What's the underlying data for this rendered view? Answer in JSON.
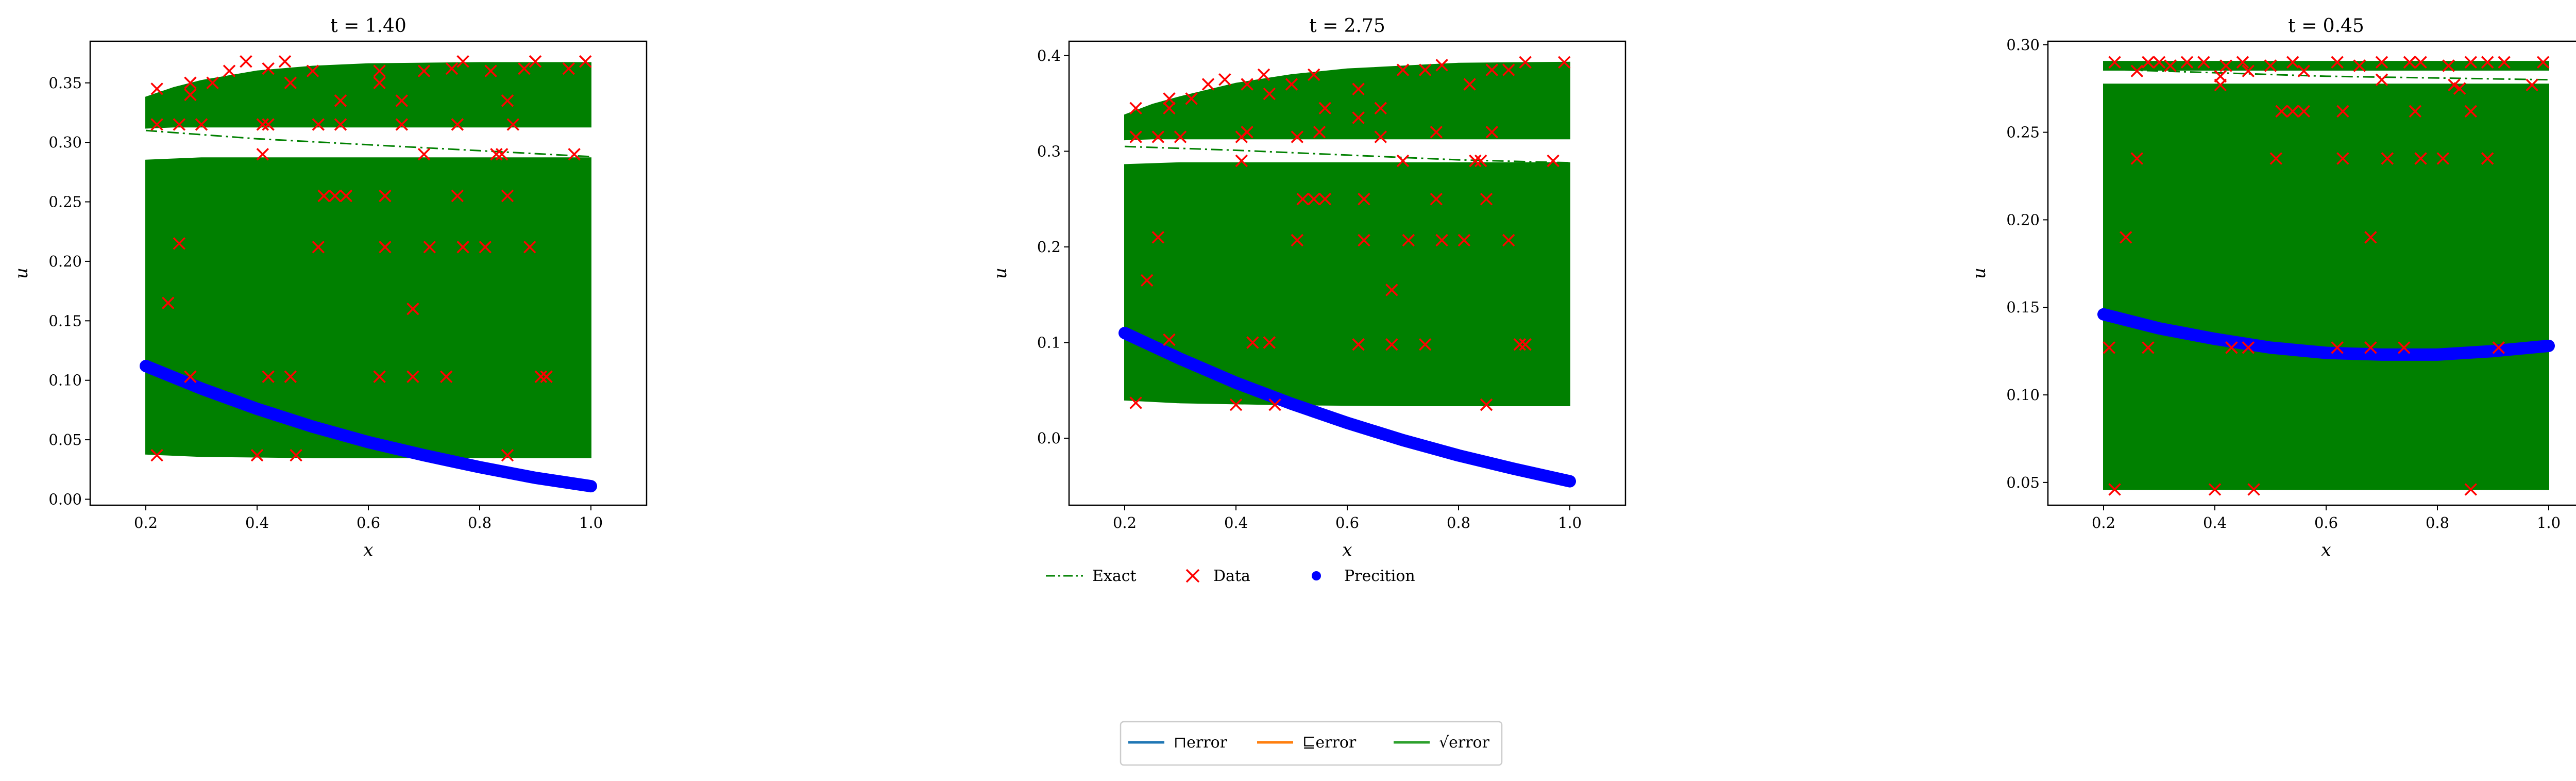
{
  "figure": {
    "legend_main": {
      "entries": [
        {
          "label": "Exact",
          "kind": "dashdot",
          "color": "#008000"
        },
        {
          "label": "Data",
          "kind": "x-marker",
          "color": "#ff0000"
        },
        {
          "label": "Precition",
          "kind": "dot",
          "color": "#0000ff"
        }
      ]
    },
    "legend_error": {
      "entries": [
        {
          "label": "⊓error",
          "color": "#1f77b4"
        },
        {
          "label": "⊑error",
          "color": "#ff7f0e"
        },
        {
          "label": "√error",
          "color": "#2ca02c"
        }
      ]
    }
  },
  "chart_data": [
    {
      "type": "scatter",
      "title": "t = 1.40",
      "xlabel": "x",
      "ylabel": "u",
      "xlim": [
        0.1,
        1.1
      ],
      "ylim": [
        -0.005,
        0.385
      ],
      "xticks": [
        0.2,
        0.4,
        0.6,
        0.8,
        1.0
      ],
      "yticks": [
        0.0,
        0.05,
        0.1,
        0.15,
        0.2,
        0.25,
        0.3,
        0.35
      ],
      "ytick_labels": [
        "0.00",
        "0.05",
        "0.10",
        "0.15",
        "0.20",
        "0.25",
        "0.30",
        "0.35"
      ],
      "bands": [
        {
          "x": [
            0.2,
            0.25,
            0.3,
            0.4,
            0.5,
            0.6,
            0.8,
            1.0
          ],
          "lower": [
            0.312,
            0.313,
            0.313,
            0.313,
            0.313,
            0.313,
            0.313,
            0.313
          ],
          "upper": [
            0.338,
            0.346,
            0.352,
            0.36,
            0.364,
            0.366,
            0.367,
            0.367
          ]
        },
        {
          "x": [
            0.2,
            0.3,
            0.5,
            0.7,
            1.0
          ],
          "lower": [
            0.038,
            0.036,
            0.035,
            0.035,
            0.035
          ],
          "upper": [
            0.285,
            0.287,
            0.287,
            0.287,
            0.287
          ]
        }
      ],
      "exact": {
        "x": [
          0.2,
          0.4,
          0.6,
          0.8,
          1.0
        ],
        "y": [
          0.31,
          0.303,
          0.298,
          0.293,
          0.288
        ]
      },
      "prediction": {
        "x": [
          0.2,
          0.3,
          0.4,
          0.5,
          0.6,
          0.7,
          0.8,
          0.9,
          1.0
        ],
        "y": [
          0.112,
          0.093,
          0.076,
          0.061,
          0.048,
          0.037,
          0.027,
          0.018,
          0.011
        ]
      },
      "data_points": [
        [
          0.22,
          0.345
        ],
        [
          0.26,
          0.315
        ],
        [
          0.28,
          0.34
        ],
        [
          0.28,
          0.35
        ],
        [
          0.32,
          0.35
        ],
        [
          0.35,
          0.36
        ],
        [
          0.38,
          0.368
        ],
        [
          0.42,
          0.362
        ],
        [
          0.45,
          0.368
        ],
        [
          0.46,
          0.35
        ],
        [
          0.5,
          0.36
        ],
        [
          0.55,
          0.335
        ],
        [
          0.62,
          0.36
        ],
        [
          0.66,
          0.335
        ],
        [
          0.7,
          0.36
        ],
        [
          0.75,
          0.362
        ],
        [
          0.77,
          0.368
        ],
        [
          0.82,
          0.36
        ],
        [
          0.85,
          0.335
        ],
        [
          0.88,
          0.362
        ],
        [
          0.9,
          0.368
        ],
        [
          0.96,
          0.362
        ],
        [
          0.99,
          0.368
        ],
        [
          0.22,
          0.315
        ],
        [
          0.3,
          0.315
        ],
        [
          0.41,
          0.315
        ],
        [
          0.42,
          0.315
        ],
        [
          0.51,
          0.315
        ],
        [
          0.55,
          0.315
        ],
        [
          0.62,
          0.35
        ],
        [
          0.66,
          0.315
        ],
        [
          0.76,
          0.315
        ],
        [
          0.86,
          0.315
        ],
        [
          0.41,
          0.29
        ],
        [
          0.7,
          0.29
        ],
        [
          0.83,
          0.29
        ],
        [
          0.84,
          0.29
        ],
        [
          0.97,
          0.29
        ],
        [
          0.52,
          0.255
        ],
        [
          0.54,
          0.255
        ],
        [
          0.56,
          0.255
        ],
        [
          0.63,
          0.255
        ],
        [
          0.76,
          0.255
        ],
        [
          0.85,
          0.255
        ],
        [
          0.26,
          0.215
        ],
        [
          0.51,
          0.212
        ],
        [
          0.63,
          0.212
        ],
        [
          0.71,
          0.212
        ],
        [
          0.77,
          0.212
        ],
        [
          0.81,
          0.212
        ],
        [
          0.89,
          0.212
        ],
        [
          0.24,
          0.165
        ],
        [
          0.68,
          0.16
        ],
        [
          0.28,
          0.103
        ],
        [
          0.42,
          0.103
        ],
        [
          0.46,
          0.103
        ],
        [
          0.62,
          0.103
        ],
        [
          0.68,
          0.103
        ],
        [
          0.74,
          0.103
        ],
        [
          0.91,
          0.103
        ],
        [
          0.92,
          0.103
        ],
        [
          0.22,
          0.037
        ],
        [
          0.4,
          0.037
        ],
        [
          0.47,
          0.037
        ],
        [
          0.85,
          0.037
        ]
      ]
    },
    {
      "type": "scatter",
      "title": "t = 2.75",
      "xlabel": "x",
      "ylabel": "u",
      "xlim": [
        0.1,
        1.1
      ],
      "ylim": [
        -0.07,
        0.415
      ],
      "xticks": [
        0.2,
        0.4,
        0.6,
        0.8,
        1.0
      ],
      "yticks": [
        0.0,
        0.1,
        0.2,
        0.3,
        0.4
      ],
      "ytick_labels": [
        "0.0",
        "0.1",
        "0.2",
        "0.3",
        "0.4"
      ],
      "bands": [
        {
          "x": [
            0.2,
            0.25,
            0.3,
            0.4,
            0.5,
            0.6,
            0.8,
            1.0
          ],
          "lower": [
            0.312,
            0.313,
            0.313,
            0.313,
            0.313,
            0.313,
            0.313,
            0.313
          ],
          "upper": [
            0.338,
            0.349,
            0.357,
            0.371,
            0.38,
            0.386,
            0.392,
            0.393
          ]
        },
        {
          "x": [
            0.2,
            0.3,
            0.5,
            0.7,
            1.0
          ],
          "lower": [
            0.04,
            0.037,
            0.035,
            0.034,
            0.034
          ],
          "upper": [
            0.286,
            0.288,
            0.288,
            0.288,
            0.288
          ]
        }
      ],
      "exact": {
        "x": [
          0.2,
          0.4,
          0.6,
          0.8,
          1.0
        ],
        "y": [
          0.305,
          0.301,
          0.296,
          0.291,
          0.288
        ]
      },
      "prediction": {
        "x": [
          0.2,
          0.3,
          0.4,
          0.5,
          0.6,
          0.7,
          0.8,
          0.9,
          1.0
        ],
        "y": [
          0.11,
          0.083,
          0.058,
          0.036,
          0.016,
          -0.002,
          -0.018,
          -0.032,
          -0.045
        ]
      },
      "data_points": [
        [
          0.22,
          0.345
        ],
        [
          0.26,
          0.315
        ],
        [
          0.28,
          0.345
        ],
        [
          0.28,
          0.355
        ],
        [
          0.32,
          0.355
        ],
        [
          0.35,
          0.37
        ],
        [
          0.38,
          0.375
        ],
        [
          0.42,
          0.37
        ],
        [
          0.45,
          0.38
        ],
        [
          0.46,
          0.36
        ],
        [
          0.5,
          0.37
        ],
        [
          0.54,
          0.38
        ],
        [
          0.56,
          0.345
        ],
        [
          0.62,
          0.365
        ],
        [
          0.66,
          0.345
        ],
        [
          0.7,
          0.385
        ],
        [
          0.74,
          0.385
        ],
        [
          0.77,
          0.39
        ],
        [
          0.82,
          0.37
        ],
        [
          0.86,
          0.385
        ],
        [
          0.89,
          0.385
        ],
        [
          0.92,
          0.393
        ],
        [
          0.99,
          0.393
        ],
        [
          0.22,
          0.315
        ],
        [
          0.3,
          0.315
        ],
        [
          0.41,
          0.315
        ],
        [
          0.42,
          0.32
        ],
        [
          0.51,
          0.315
        ],
        [
          0.55,
          0.32
        ],
        [
          0.62,
          0.335
        ],
        [
          0.66,
          0.315
        ],
        [
          0.76,
          0.32
        ],
        [
          0.86,
          0.32
        ],
        [
          0.41,
          0.29
        ],
        [
          0.7,
          0.29
        ],
        [
          0.83,
          0.29
        ],
        [
          0.84,
          0.29
        ],
        [
          0.97,
          0.29
        ],
        [
          0.52,
          0.25
        ],
        [
          0.54,
          0.25
        ],
        [
          0.56,
          0.25
        ],
        [
          0.63,
          0.25
        ],
        [
          0.76,
          0.25
        ],
        [
          0.85,
          0.25
        ],
        [
          0.26,
          0.21
        ],
        [
          0.51,
          0.207
        ],
        [
          0.63,
          0.207
        ],
        [
          0.71,
          0.207
        ],
        [
          0.77,
          0.207
        ],
        [
          0.81,
          0.207
        ],
        [
          0.89,
          0.207
        ],
        [
          0.24,
          0.165
        ],
        [
          0.68,
          0.155
        ],
        [
          0.28,
          0.103
        ],
        [
          0.43,
          0.1
        ],
        [
          0.46,
          0.1
        ],
        [
          0.62,
          0.098
        ],
        [
          0.68,
          0.098
        ],
        [
          0.74,
          0.098
        ],
        [
          0.91,
          0.098
        ],
        [
          0.92,
          0.098
        ],
        [
          0.22,
          0.037
        ],
        [
          0.4,
          0.035
        ],
        [
          0.47,
          0.035
        ],
        [
          0.85,
          0.035
        ]
      ]
    },
    {
      "type": "scatter",
      "title": "t = 0.45",
      "xlabel": "x",
      "ylabel": "u",
      "xlim": [
        0.1,
        1.1
      ],
      "ylim": [
        0.037,
        0.302
      ],
      "xticks": [
        0.2,
        0.4,
        0.6,
        0.8,
        1.0
      ],
      "yticks": [
        0.05,
        0.1,
        0.15,
        0.2,
        0.25,
        0.3
      ],
      "ytick_labels": [
        "0.05",
        "0.10",
        "0.15",
        "0.20",
        "0.25",
        "0.30"
      ],
      "bands": [
        {
          "x": [
            0.2,
            0.5,
            0.8,
            1.0
          ],
          "lower": [
            0.2855,
            0.2855,
            0.2855,
            0.2855
          ],
          "upper": [
            0.2905,
            0.2905,
            0.2905,
            0.2905
          ]
        },
        {
          "x": [
            0.2,
            0.5,
            0.8,
            1.0
          ],
          "lower": [
            0.046,
            0.046,
            0.046,
            0.046
          ],
          "upper": [
            0.2775,
            0.2775,
            0.2775,
            0.2775
          ]
        }
      ],
      "exact": {
        "x": [
          0.2,
          0.4,
          0.6,
          0.8,
          1.0
        ],
        "y": [
          0.286,
          0.284,
          0.282,
          0.281,
          0.28
        ]
      },
      "prediction": {
        "x": [
          0.2,
          0.3,
          0.4,
          0.5,
          0.6,
          0.7,
          0.8,
          0.9,
          1.0
        ],
        "y": [
          0.146,
          0.138,
          0.132,
          0.127,
          0.124,
          0.123,
          0.123,
          0.125,
          0.128
        ]
      },
      "data_points": [
        [
          0.22,
          0.29
        ],
        [
          0.26,
          0.285
        ],
        [
          0.28,
          0.29
        ],
        [
          0.3,
          0.29
        ],
        [
          0.32,
          0.288
        ],
        [
          0.35,
          0.29
        ],
        [
          0.38,
          0.29
        ],
        [
          0.42,
          0.288
        ],
        [
          0.45,
          0.29
        ],
        [
          0.46,
          0.285
        ],
        [
          0.5,
          0.288
        ],
        [
          0.54,
          0.29
        ],
        [
          0.56,
          0.285
        ],
        [
          0.62,
          0.29
        ],
        [
          0.66,
          0.288
        ],
        [
          0.7,
          0.29
        ],
        [
          0.75,
          0.29
        ],
        [
          0.77,
          0.29
        ],
        [
          0.82,
          0.288
        ],
        [
          0.86,
          0.29
        ],
        [
          0.89,
          0.29
        ],
        [
          0.92,
          0.29
        ],
        [
          0.99,
          0.29
        ],
        [
          0.41,
          0.282
        ],
        [
          0.41,
          0.277
        ],
        [
          0.7,
          0.28
        ],
        [
          0.83,
          0.277
        ],
        [
          0.84,
          0.275
        ],
        [
          0.97,
          0.277
        ],
        [
          0.52,
          0.262
        ],
        [
          0.54,
          0.262
        ],
        [
          0.56,
          0.262
        ],
        [
          0.63,
          0.262
        ],
        [
          0.76,
          0.262
        ],
        [
          0.86,
          0.262
        ],
        [
          0.26,
          0.235
        ],
        [
          0.51,
          0.235
        ],
        [
          0.63,
          0.235
        ],
        [
          0.71,
          0.235
        ],
        [
          0.77,
          0.235
        ],
        [
          0.81,
          0.235
        ],
        [
          0.89,
          0.235
        ],
        [
          0.24,
          0.19
        ],
        [
          0.68,
          0.19
        ],
        [
          0.21,
          0.127
        ],
        [
          0.28,
          0.127
        ],
        [
          0.43,
          0.127
        ],
        [
          0.46,
          0.127
        ],
        [
          0.62,
          0.127
        ],
        [
          0.68,
          0.127
        ],
        [
          0.74,
          0.127
        ],
        [
          0.91,
          0.127
        ],
        [
          0.22,
          0.046
        ],
        [
          0.4,
          0.046
        ],
        [
          0.47,
          0.046
        ],
        [
          0.86,
          0.046
        ]
      ]
    }
  ]
}
